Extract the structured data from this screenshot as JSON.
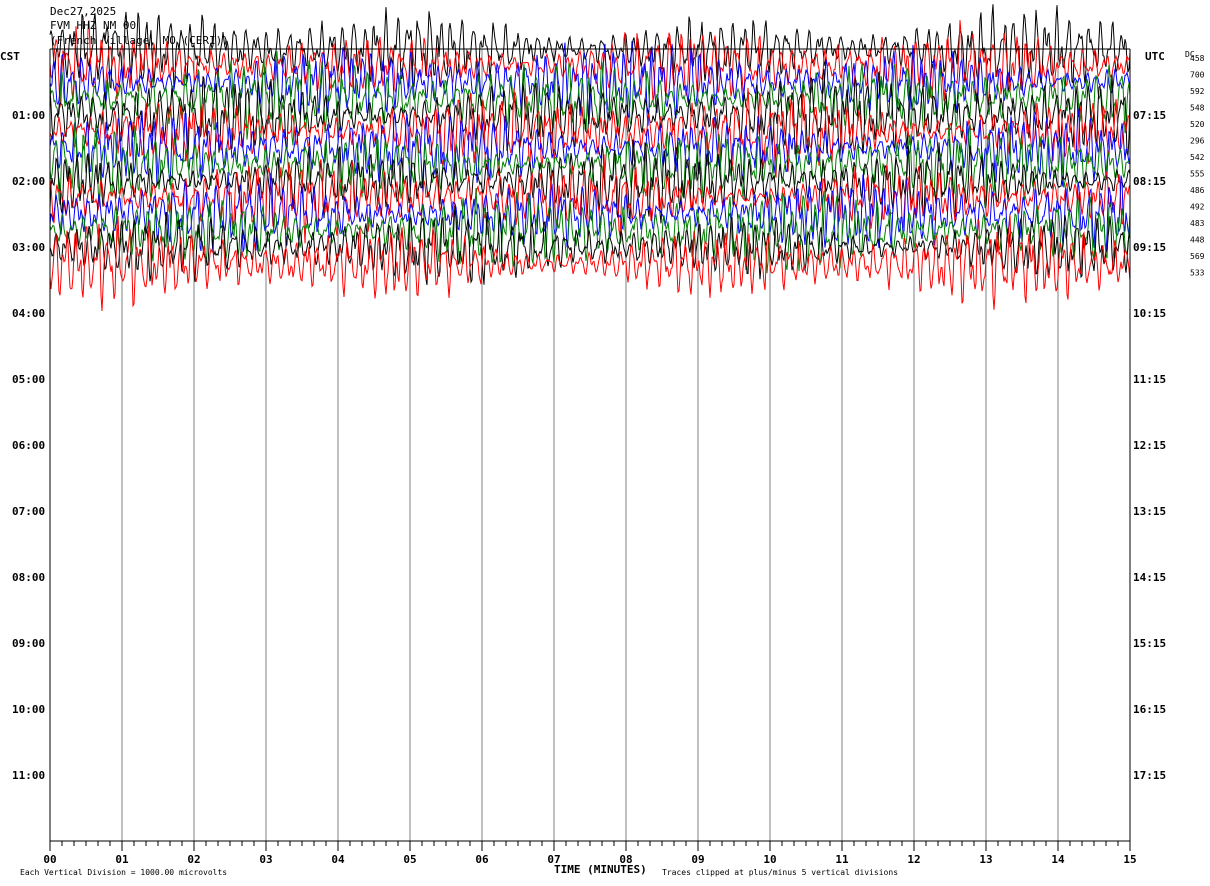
{
  "header": {
    "date": "Dec27,2025",
    "station": "FVM HHZ NM 00",
    "location": "(French Village, MO (CERI))"
  },
  "left_zone_label": "CST",
  "right_zone_label": "UTC",
  "dc_label": "DC",
  "chart_data": {
    "type": "line",
    "title": "",
    "xlabel": "TIME (MINUTES)",
    "x_range": [
      0,
      15
    ],
    "x_ticks": [
      "00",
      "01",
      "02",
      "03",
      "04",
      "05",
      "06",
      "07",
      "08",
      "09",
      "10",
      "11",
      "12",
      "13",
      "14",
      "15"
    ],
    "left_hour_labels": [
      "01:00",
      "02:00",
      "03:00",
      "04:00",
      "05:00",
      "06:00",
      "07:00",
      "08:00",
      "09:00",
      "10:00",
      "11:00"
    ],
    "right_hour_labels": [
      "07:15",
      "08:15",
      "09:15",
      "10:15",
      "11:15",
      "12:15",
      "13:15",
      "14:15",
      "15:15",
      "16:15",
      "17:15"
    ],
    "rows_per_hour": 4,
    "dc_offsets": [
      458,
      700,
      592,
      548,
      520,
      296,
      542,
      555,
      486,
      492,
      483,
      448,
      569,
      533
    ],
    "trace_colors": [
      "#000000",
      "#ff0000",
      "#0000ff",
      "#007f00"
    ],
    "grid": true,
    "clip_divisions": 5
  },
  "footer": {
    "scale_note": "Each Vertical Division = 1000.00 microvolts",
    "clip_note": "Traces clipped at plus/minus 5 vertical divisions"
  }
}
